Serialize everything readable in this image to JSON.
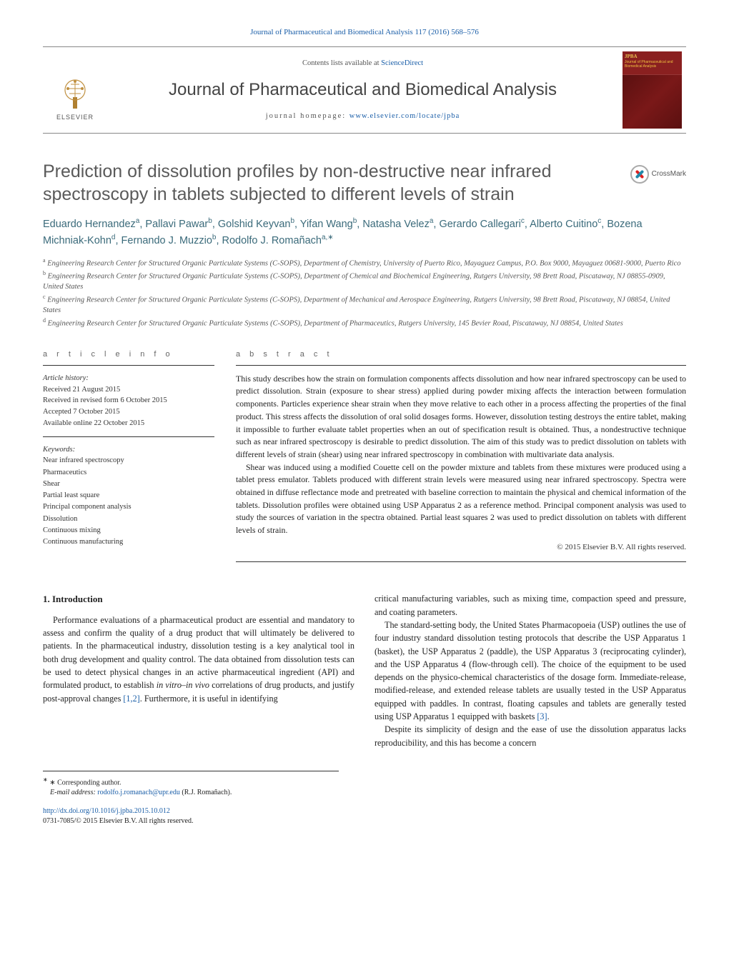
{
  "citation_line": "Journal of Pharmaceutical and Biomedical Analysis 117 (2016) 568–576",
  "masthead": {
    "publisher_label": "ELSEVIER",
    "contents_prefix": "Contents lists available at ",
    "contents_link": "ScienceDirect",
    "journal_name": "Journal of Pharmaceutical and Biomedical Analysis",
    "homepage_prefix": "journal homepage: ",
    "homepage_url": "www.elsevier.com/locate/jpba",
    "cover_label_top": "Journal of Pharmaceutical and Biomedical Analysis",
    "cover_label_jpba": "JPBA"
  },
  "crossmark_label": "CrossMark",
  "title": "Prediction of dissolution profiles by non-destructive near infrared spectroscopy in tablets subjected to different levels of strain",
  "authors_html": "Eduardo Hernandez<sup>a</sup>, Pallavi Pawar<sup>b</sup>, Golshid Keyvan<sup>b</sup>, Yifan Wang<sup>b</sup>, Natasha Velez<sup>a</sup>, Gerardo Callegari<sup>c</sup>, Alberto Cuitino<sup>c</sup>, Bozena Michniak-Kohn<sup>d</sup>, Fernando J. Muzzio<sup>b</sup>, Rodolfo J. Romañach<sup>a,∗</sup>",
  "affiliations": [
    {
      "sup": "a",
      "text": "Engineering Research Center for Structured Organic Particulate Systems (C-SOPS), Department of Chemistry, University of Puerto Rico, Mayaguez Campus, P.O. Box 9000, Mayaguez 00681-9000, Puerto Rico"
    },
    {
      "sup": "b",
      "text": "Engineering Research Center for Structured Organic Particulate Systems (C-SOPS), Department of Chemical and Biochemical Engineering, Rutgers University, 98 Brett Road, Piscataway, NJ 08855-0909, United States"
    },
    {
      "sup": "c",
      "text": "Engineering Research Center for Structured Organic Particulate Systems (C-SOPS), Department of Mechanical and Aerospace Engineering, Rutgers University, 98 Brett Road, Piscataway, NJ 08854, United States"
    },
    {
      "sup": "d",
      "text": "Engineering Research Center for Structured Organic Particulate Systems (C-SOPS), Department of Pharmaceutics, Rutgers University, 145 Bevier Road, Piscataway, NJ 08854, United States"
    }
  ],
  "article_info": {
    "heading": "a r t i c l e   i n f o",
    "history_label": "Article history:",
    "received": "Received 21 August 2015",
    "received_revised": "Received in revised form 6 October 2015",
    "accepted": "Accepted 7 October 2015",
    "online": "Available online 22 October 2015",
    "keywords_label": "Keywords:",
    "keywords": [
      "Near infrared spectroscopy",
      "Pharmaceutics",
      "Shear",
      "Partial least square",
      "Principal component analysis",
      "Dissolution",
      "Continuous mixing",
      "Continuous manufacturing"
    ]
  },
  "abstract": {
    "heading": "a b s t r a c t",
    "p1": "This study describes how the strain on formulation components affects dissolution and how near infrared spectroscopy can be used to predict dissolution. Strain (exposure to shear stress) applied during powder mixing affects the interaction between formulation components. Particles experience shear strain when they move relative to each other in a process affecting the properties of the final product. This stress affects the dissolution of oral solid dosages forms. However, dissolution testing destroys the entire tablet, making it impossible to further evaluate tablet properties when an out of specification result is obtained. Thus, a nondestructive technique such as near infrared spectroscopy is desirable to predict dissolution. The aim of this study was to predict dissolution on tablets with different levels of strain (shear) using near infrared spectroscopy in combination with multivariate data analysis.",
    "p2": "Shear was induced using a modified Couette cell on the powder mixture and tablets from these mixtures were produced using a tablet press emulator. Tablets produced with different strain levels were measured using near infrared spectroscopy. Spectra were obtained in diffuse reflectance mode and pretreated with baseline correction to maintain the physical and chemical information of the tablets. Dissolution profiles were obtained using USP Apparatus 2 as a reference method. Principal component analysis was used to study the sources of variation in the spectra obtained. Partial least squares 2 was used to predict dissolution on tablets with different levels of strain.",
    "copyright": "© 2015 Elsevier B.V. All rights reserved."
  },
  "body": {
    "section_heading": "1. Introduction",
    "p1_pre": "Performance evaluations of a pharmaceutical product are essential and mandatory to assess and confirm the quality of a drug product that will ultimately be delivered to patients. In the pharmaceutical industry, dissolution testing is a key analytical tool in both drug development and quality control. The data obtained from dissolution tests can be used to detect physical changes in an active pharmaceutical ingredient (API) and formulated product, to establish ",
    "p1_ivv": "in vitro–in vivo",
    "p1_mid": " correlations of drug products, and justify post-approval changes ",
    "p1_ref": "[1,2]",
    "p1_post": ". Furthermore, it is useful in identifying ",
    "p2": "critical manufacturing variables, such as mixing time, compaction speed and pressure, and coating parameters.",
    "p3_pre": "The standard-setting body, the United States Pharmacopoeia (USP) outlines the use of four industry standard dissolution testing protocols that describe the USP Apparatus 1 (basket), the USP Apparatus 2 (paddle), the USP Apparatus 3 (reciprocating cylinder), and the USP Apparatus 4 (flow-through cell). The choice of the equipment to be used depends on the physico-chemical characteristics of the dosage form. Immediate-release, modified-release, and extended release tablets are usually tested in the USP Apparatus equipped with paddles. In contrast, floating capsules and tablets are generally tested using USP Apparatus 1 equipped with baskets ",
    "p3_ref": "[3]",
    "p3_post": ".",
    "p4": "Despite its simplicity of design and the ease of use the dissolution apparatus lacks reproducibility, and this has become a concern"
  },
  "footnotes": {
    "corr_label": "∗ Corresponding author.",
    "email_label": "E-mail address: ",
    "email": "rodolfo.j.romanach@upr.edu",
    "email_attribution": " (R.J. Romañach)."
  },
  "footer": {
    "doi": "http://dx.doi.org/10.1016/j.jpba.2015.10.012",
    "issn_line": "0731-7085/© 2015 Elsevier B.V. All rights reserved."
  },
  "colors": {
    "link": "#1a5ea8",
    "author": "#3a6a7a",
    "title_gray": "#5a5a5a",
    "cover_red": "#7a1a1a"
  }
}
